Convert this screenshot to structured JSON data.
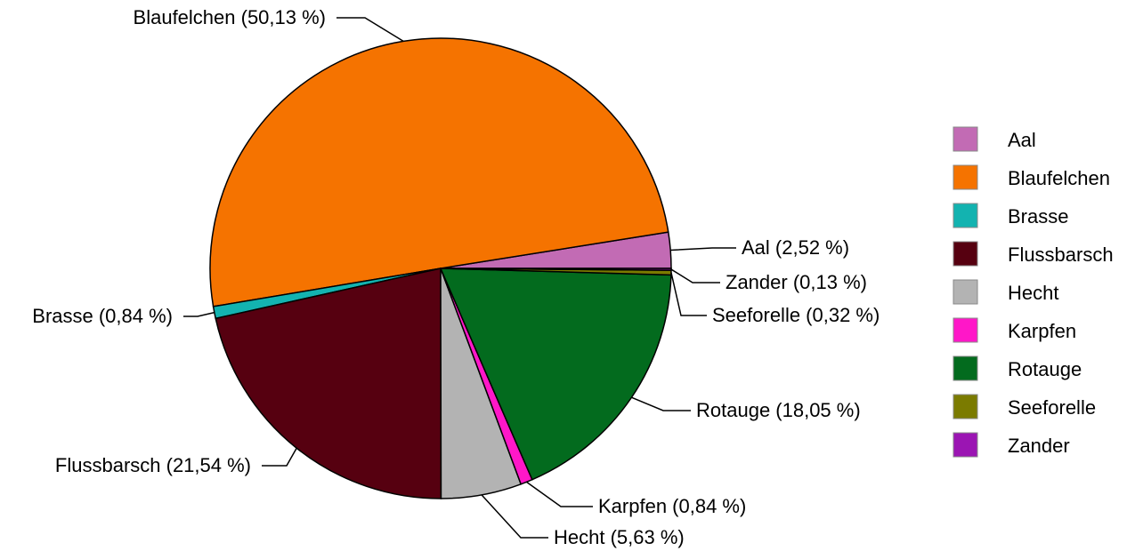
{
  "chart_data": {
    "type": "pie",
    "categories": [
      "Aal",
      "Blaufelchen",
      "Brasse",
      "Flussbarsch",
      "Hecht",
      "Karpfen",
      "Rotauge",
      "Seeforelle",
      "Zander"
    ],
    "values": [
      2.52,
      50.13,
      0.84,
      21.54,
      5.63,
      0.84,
      18.05,
      0.32,
      0.13
    ],
    "value_labels": [
      "Aal (2,52 %)",
      "Blaufelchen (50,13 %)",
      "Brasse (0,84 %)",
      "Flussbarsch (21,54 %)",
      "Hecht (5,63 %)",
      "Karpfen (0,84 %)",
      "Rotauge (18,05 %)",
      "Seeforelle (0,32 %)",
      "Zander (0,13 %)"
    ],
    "colors": [
      "#c26bb4",
      "#f57300",
      "#13b3b0",
      "#560010",
      "#b3b3b3",
      "#ff17c8",
      "#036b1e",
      "#7b7b00",
      "#9b15b3"
    ],
    "legend": "right"
  }
}
